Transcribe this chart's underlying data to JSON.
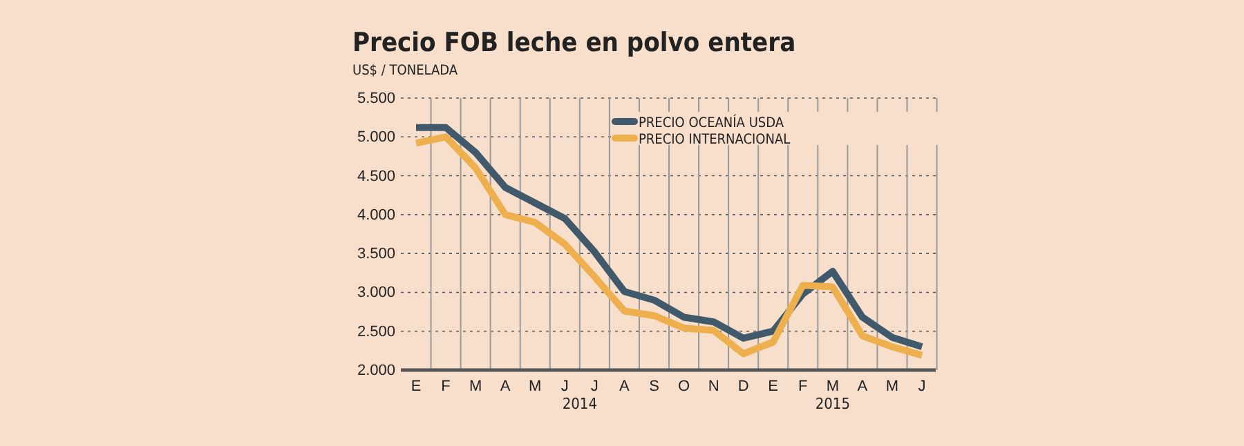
{
  "chart_data": {
    "type": "line",
    "title": "Precio FOB leche en polvo entera",
    "subtitle": "US$ / TONELADA",
    "categories": [
      "E",
      "F",
      "M",
      "A",
      "M",
      "J",
      "J",
      "A",
      "S",
      "O",
      "N",
      "D",
      "E",
      "F",
      "M",
      "A",
      "M",
      "J"
    ],
    "series": [
      {
        "name": "PRECIO OCEANÍA USDA",
        "color": "#40596b",
        "values": [
          5120,
          5120,
          4800,
          4350,
          4150,
          3950,
          3520,
          3010,
          2900,
          2680,
          2620,
          2410,
          2500,
          2980,
          3270,
          2680,
          2420,
          2300
        ]
      },
      {
        "name": "PRECIO INTERNACIONAL",
        "color": "#eeb04e",
        "values": [
          4920,
          5000,
          4600,
          4000,
          3900,
          3620,
          3200,
          2760,
          2700,
          2540,
          2510,
          2210,
          2360,
          3090,
          3070,
          2440,
          2300,
          2190
        ]
      }
    ],
    "annotations": [
      "2014",
      "2015"
    ],
    "ylim": [
      2000,
      5500
    ],
    "yticks": [
      {
        "value": 2000,
        "label": "2.000"
      },
      {
        "value": 2500,
        "label": "2.500"
      },
      {
        "value": 3000,
        "label": "3.000"
      },
      {
        "value": 3500,
        "label": "3.500"
      },
      {
        "value": 4000,
        "label": "4.000"
      },
      {
        "value": 4500,
        "label": "4.500"
      },
      {
        "value": 5000,
        "label": "5.000"
      },
      {
        "value": 5500,
        "label": "5.500"
      }
    ],
    "grid": true,
    "legend": "top right",
    "line_style": "solid",
    "marker": "none"
  }
}
